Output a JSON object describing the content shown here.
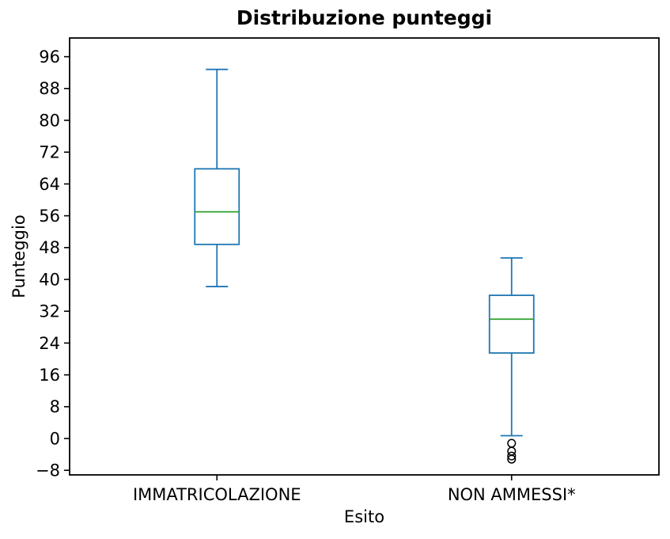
{
  "chart_data": {
    "type": "boxplot",
    "title": "Distribuzione punteggi",
    "xlabel": "Esito",
    "ylabel": "Punteggio",
    "categories": [
      "IMMATRICOLAZIONE",
      "NON AMMESSI*"
    ],
    "yticks": [
      96,
      88,
      80,
      72,
      64,
      56,
      48,
      40,
      32,
      24,
      16,
      8,
      0,
      -8
    ],
    "ylim": [
      -9.15,
      100.7
    ],
    "grid": false,
    "legend": "none",
    "series": [
      {
        "label": "IMMATRICOLAZIONE",
        "whisker_low": 38.2,
        "q1": 48.8,
        "median": 57.0,
        "q3": 67.8,
        "whisker_high": 92.8,
        "outliers": []
      },
      {
        "label": "NON AMMESSI*",
        "whisker_low": 0.7,
        "q1": 21.5,
        "median": 30.0,
        "q3": 36.0,
        "whisker_high": 45.4,
        "outliers": [
          -1.2,
          -3.2,
          -4.4,
          -5.2
        ]
      }
    ],
    "colors": {
      "box": "#1f77b4",
      "whisker": "#1f77b4",
      "cap": "#1f77b4",
      "median": "#2ca02c",
      "outlier_edge": "#000000",
      "axis": "#000000",
      "text": "#000000",
      "background": "#ffffff"
    }
  }
}
